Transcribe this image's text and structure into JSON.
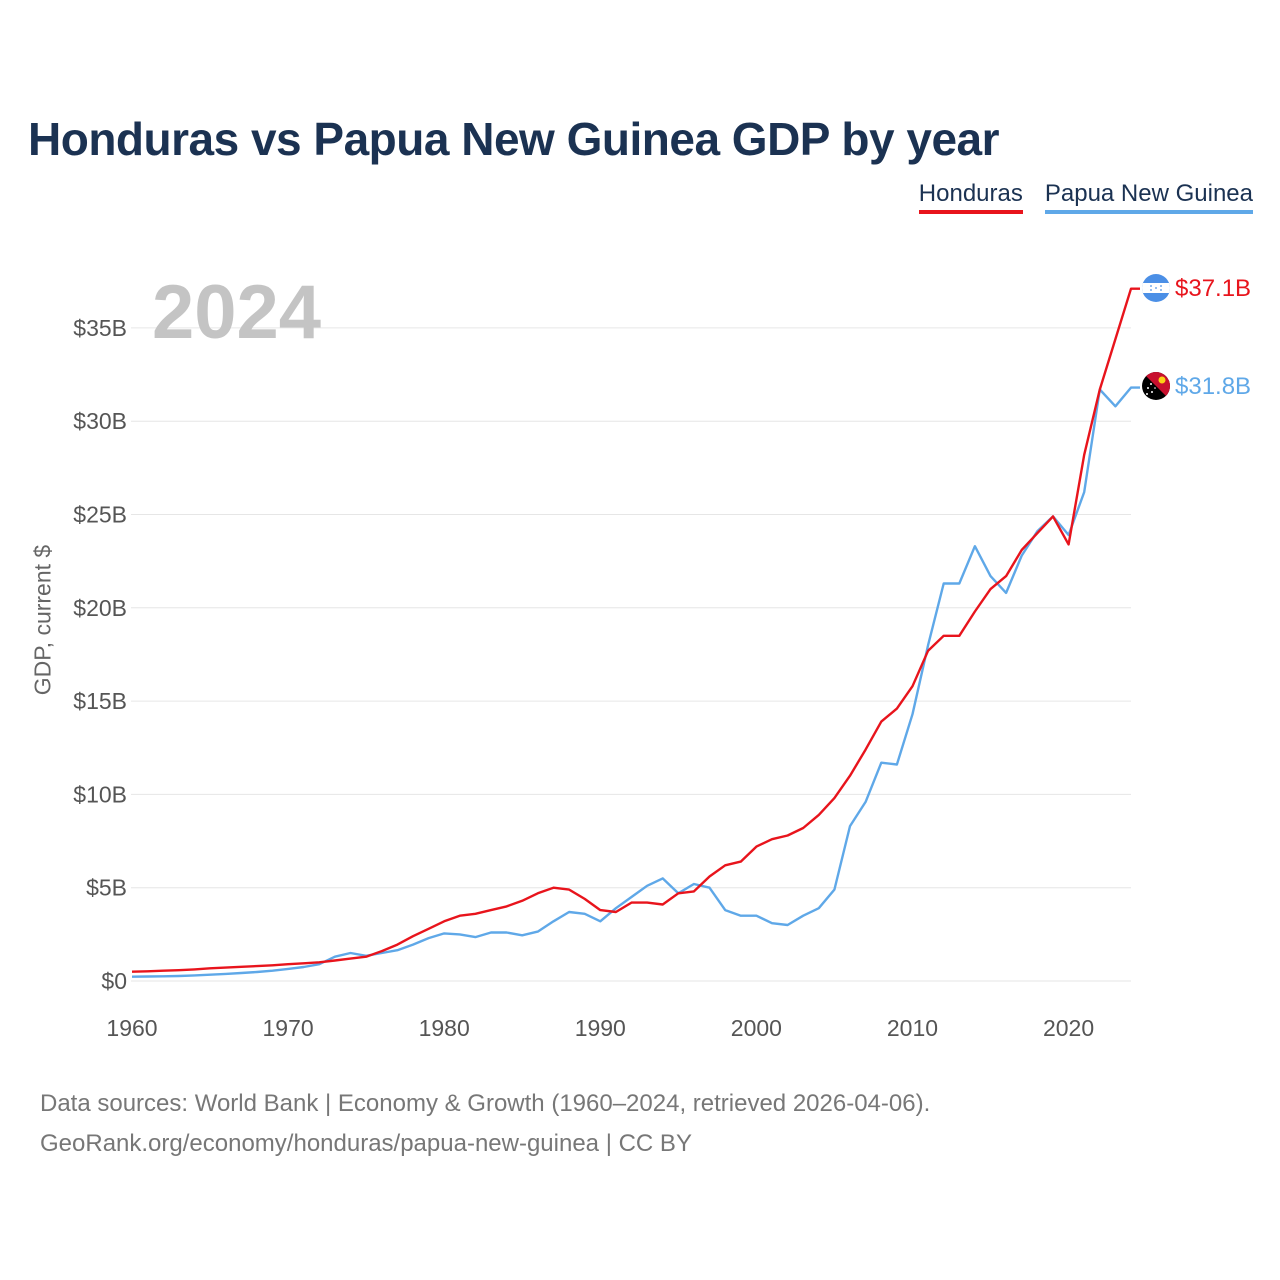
{
  "colors": {
    "honduras": "#e8141c",
    "png": "#5fa8e8",
    "grid": "#e6e6e6",
    "tick": "#555555",
    "year": "#c4c4c4"
  },
  "chart_data": {
    "type": "line",
    "title": "Honduras vs Papua New Guinea GDP by year",
    "xlabel": "",
    "ylabel": "GDP, current $",
    "xlim": [
      1960,
      2024
    ],
    "ylim": [
      0,
      37.1
    ],
    "x_ticks": [
      1960,
      1970,
      1980,
      1990,
      2000,
      2010,
      2020
    ],
    "x_tick_labels": [
      "1960",
      "1970",
      "1980",
      "1990",
      "2000",
      "2010",
      "2020"
    ],
    "y_ticks": [
      0,
      5,
      10,
      15,
      20,
      25,
      30,
      35
    ],
    "y_tick_labels": [
      "$0",
      "$5B",
      "$10B",
      "$15B",
      "$20B",
      "$25B",
      "$30B",
      "$35B"
    ],
    "year_label": "2024",
    "legend_position": "top-right",
    "grid": true,
    "series": [
      {
        "name": "Honduras",
        "end_label": "$37.1B",
        "flag_icon": "honduras-flag-icon",
        "x": [
          1960,
          1961,
          1962,
          1963,
          1964,
          1965,
          1966,
          1967,
          1968,
          1969,
          1970,
          1971,
          1972,
          1973,
          1974,
          1975,
          1976,
          1977,
          1978,
          1979,
          1980,
          1981,
          1982,
          1983,
          1984,
          1985,
          1986,
          1987,
          1988,
          1989,
          1990,
          1991,
          1992,
          1993,
          1994,
          1995,
          1996,
          1997,
          1998,
          1999,
          2000,
          2001,
          2002,
          2003,
          2004,
          2005,
          2006,
          2007,
          2008,
          2009,
          2010,
          2011,
          2012,
          2013,
          2014,
          2015,
          2016,
          2017,
          2018,
          2019,
          2020,
          2021,
          2022,
          2023,
          2024
        ],
        "values": [
          0.5,
          0.52,
          0.55,
          0.58,
          0.62,
          0.68,
          0.72,
          0.76,
          0.8,
          0.84,
          0.9,
          0.95,
          1.0,
          1.1,
          1.2,
          1.3,
          1.6,
          1.95,
          2.4,
          2.8,
          3.2,
          3.5,
          3.6,
          3.8,
          4.0,
          4.3,
          4.7,
          5.0,
          4.9,
          4.4,
          3.8,
          3.7,
          4.2,
          4.2,
          4.1,
          4.7,
          4.8,
          5.6,
          6.2,
          6.4,
          7.2,
          7.6,
          7.8,
          8.2,
          8.9,
          9.8,
          11.0,
          12.4,
          13.9,
          14.6,
          15.8,
          17.7,
          18.5,
          18.5,
          19.8,
          21.0,
          21.7,
          23.1,
          24.0,
          24.9,
          23.4,
          28.2,
          31.7,
          34.4,
          37.1
        ]
      },
      {
        "name": "Papua New Guinea",
        "end_label": "$31.8B",
        "flag_icon": "papua-new-guinea-flag-icon",
        "x": [
          1960,
          1961,
          1962,
          1963,
          1964,
          1965,
          1966,
          1967,
          1968,
          1969,
          1970,
          1971,
          1972,
          1973,
          1974,
          1975,
          1976,
          1977,
          1978,
          1979,
          1980,
          1981,
          1982,
          1983,
          1984,
          1985,
          1986,
          1987,
          1988,
          1989,
          1990,
          1991,
          1992,
          1993,
          1994,
          1995,
          1996,
          1997,
          1998,
          1999,
          2000,
          2001,
          2002,
          2003,
          2004,
          2005,
          2006,
          2007,
          2008,
          2009,
          2010,
          2011,
          2012,
          2013,
          2014,
          2015,
          2016,
          2017,
          2018,
          2019,
          2020,
          2021,
          2022,
          2023,
          2024
        ],
        "values": [
          0.23,
          0.24,
          0.25,
          0.27,
          0.3,
          0.34,
          0.38,
          0.43,
          0.48,
          0.55,
          0.65,
          0.75,
          0.9,
          1.3,
          1.5,
          1.35,
          1.5,
          1.65,
          1.95,
          2.3,
          2.55,
          2.5,
          2.35,
          2.6,
          2.6,
          2.45,
          2.65,
          3.2,
          3.7,
          3.6,
          3.2,
          3.9,
          4.5,
          5.1,
          5.5,
          4.7,
          5.2,
          5.0,
          3.8,
          3.5,
          3.5,
          3.1,
          3.0,
          3.5,
          3.9,
          4.9,
          8.3,
          9.6,
          11.7,
          11.6,
          14.3,
          18.0,
          21.3,
          21.3,
          23.3,
          21.7,
          20.8,
          22.8,
          24.1,
          24.9,
          23.9,
          26.2,
          31.7,
          30.8,
          31.8
        ]
      }
    ]
  },
  "sources": {
    "line1": "Data sources: World Bank | Economy & Growth (1960–2024, retrieved 2026-04-06).",
    "line2": "GeoRank.org/economy/honduras/papua-new-guinea | CC BY"
  }
}
